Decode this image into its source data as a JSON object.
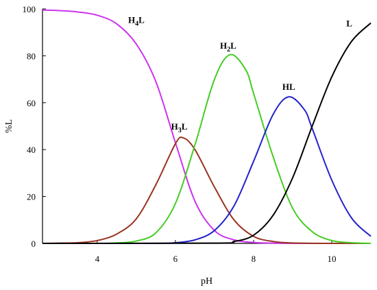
{
  "chart_data": {
    "type": "line",
    "title": "",
    "xlabel": "pH",
    "ylabel": "%L",
    "xlim": [
      2.6,
      11.0
    ],
    "ylim": [
      0,
      100
    ],
    "xticks": [
      4,
      6,
      8,
      10
    ],
    "yticks": [
      0,
      20,
      40,
      60,
      80,
      100
    ],
    "grid": false,
    "legend": "none",
    "series": [
      {
        "name": "H4L",
        "label_main": "H",
        "label_sub": "4",
        "label_end": "L",
        "color": "#cc33ee",
        "x": [
          2.6,
          3.0,
          3.5,
          4.0,
          4.5,
          5.0,
          5.5,
          6.0,
          6.5,
          7.0,
          7.5,
          8.0,
          8.5,
          9.0,
          10.0,
          11.0
        ],
        "y": [
          99.5,
          99.3,
          98.7,
          97.3,
          93.6,
          85.0,
          69.0,
          43.0,
          18.0,
          5.5,
          1.5,
          0.4,
          0.1,
          0.0,
          0.0,
          0.0
        ]
      },
      {
        "name": "H3L",
        "label_main": "H",
        "label_sub": "3",
        "label_end": "L",
        "color": "#993322",
        "x": [
          2.6,
          3.0,
          3.5,
          4.0,
          4.5,
          5.0,
          5.5,
          6.0,
          6.2,
          6.5,
          7.0,
          7.5,
          8.0,
          8.5,
          9.0,
          10.0,
          11.0
        ],
        "y": [
          0.0,
          0.1,
          0.3,
          1.2,
          4.0,
          10.5,
          25.0,
          42.5,
          45.0,
          40.0,
          24.0,
          10.0,
          3.0,
          0.8,
          0.2,
          0.0,
          0.0
        ]
      },
      {
        "name": "H2L",
        "label_main": "H",
        "label_sub": "2",
        "label_end": "L",
        "color": "#44cc22",
        "x": [
          2.6,
          4.0,
          4.5,
          5.0,
          5.5,
          6.0,
          6.5,
          7.0,
          7.4,
          7.8,
          8.0,
          8.5,
          9.0,
          9.5,
          10.0,
          10.5,
          11.0
        ],
        "y": [
          0.0,
          0.0,
          0.2,
          1.0,
          4.5,
          17.0,
          42.0,
          70.0,
          80.5,
          74.0,
          64.0,
          37.0,
          15.0,
          5.0,
          1.2,
          0.3,
          0.0
        ]
      },
      {
        "name": "HL",
        "label_main": "HL",
        "label_sub": "",
        "label_end": "",
        "color": "#2222cc",
        "x": [
          2.6,
          5.5,
          6.0,
          6.5,
          7.0,
          7.5,
          8.0,
          8.5,
          8.9,
          9.3,
          9.5,
          10.0,
          10.5,
          11.0
        ],
        "y": [
          0.0,
          0.0,
          0.3,
          1.5,
          5.5,
          16.0,
          35.0,
          55.0,
          62.5,
          57.0,
          49.0,
          27.0,
          11.0,
          3.0
        ]
      },
      {
        "name": "L",
        "label_main": "L",
        "label_sub": "",
        "label_end": "",
        "color": "#000000",
        "x": [
          2.6,
          7.0,
          7.5,
          8.0,
          8.5,
          9.0,
          9.5,
          10.0,
          10.5,
          11.0
        ],
        "y": [
          0.0,
          0.1,
          0.8,
          3.5,
          12.0,
          28.0,
          50.0,
          71.0,
          86.0,
          94.0
        ]
      }
    ],
    "annotations": [
      {
        "series": "H4L",
        "x": 5.0,
        "y": 94.0
      },
      {
        "series": "H2L",
        "x": 7.35,
        "y": 83.0
      },
      {
        "series": "H3L",
        "x": 6.1,
        "y": 48.5
      },
      {
        "series": "HL",
        "x": 8.9,
        "y": 65.5
      },
      {
        "series": "L",
        "x": 10.45,
        "y": 92.5
      }
    ]
  }
}
